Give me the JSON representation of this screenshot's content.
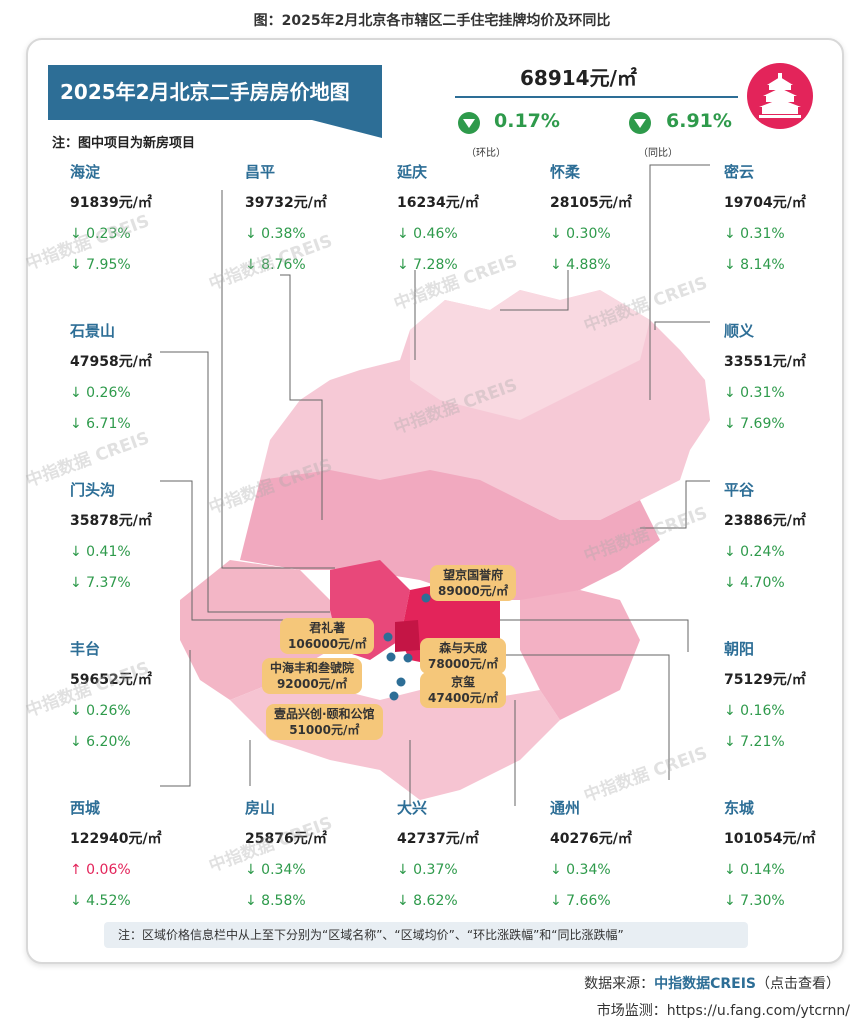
{
  "caption": "图：2025年2月北京各市辖区二手住宅挂牌均价及环同比",
  "banner_title": "2025年2月北京二手房房价地图",
  "note_top": "注：图中项目为新房项目",
  "overall": {
    "avg_price": "68914元/㎡",
    "mom": "0.17%",
    "mom_label": "（环比）",
    "yoy": "6.91%",
    "yoy_label": "（同比）"
  },
  "districts": [
    {
      "name": "海淀",
      "price": "91839元/㎡",
      "mom": "↓ 0.23%",
      "yoy": "↓ 7.95%"
    },
    {
      "name": "昌平",
      "price": "39732元/㎡",
      "mom": "↓ 0.38%",
      "yoy": "↓ 8.76%"
    },
    {
      "name": "延庆",
      "price": "16234元/㎡",
      "mom": "↓ 0.46%",
      "yoy": "↓ 7.28%"
    },
    {
      "name": "怀柔",
      "price": "28105元/㎡",
      "mom": "↓ 0.30%",
      "yoy": "↓ 4.88%"
    },
    {
      "name": "密云",
      "price": "19704元/㎡",
      "mom": "↓ 0.31%",
      "yoy": "↓ 8.14%"
    },
    {
      "name": "石景山",
      "price": "47958元/㎡",
      "mom": "↓ 0.26%",
      "yoy": "↓ 6.71%"
    },
    {
      "name": "顺义",
      "price": "33551元/㎡",
      "mom": "↓ 0.31%",
      "yoy": "↓ 7.69%"
    },
    {
      "name": "门头沟",
      "price": "35878元/㎡",
      "mom": "↓ 0.41%",
      "yoy": "↓ 7.37%"
    },
    {
      "name": "平谷",
      "price": "23886元/㎡",
      "mom": "↓ 0.24%",
      "yoy": "↓ 4.70%"
    },
    {
      "name": "丰台",
      "price": "59652元/㎡",
      "mom": "↓ 0.26%",
      "yoy": "↓ 6.20%"
    },
    {
      "name": "朝阳",
      "price": "75129元/㎡",
      "mom": "↓ 0.16%",
      "yoy": "↓ 7.21%"
    },
    {
      "name": "西城",
      "price": "122940元/㎡",
      "mom": "↑ 0.06%",
      "yoy": "↓ 4.52%"
    },
    {
      "name": "房山",
      "price": "25876元/㎡",
      "mom": "↓ 0.34%",
      "yoy": "↓ 8.58%"
    },
    {
      "name": "大兴",
      "price": "42737元/㎡",
      "mom": "↓ 0.37%",
      "yoy": "↓ 8.62%"
    },
    {
      "name": "通州",
      "price": "40276元/㎡",
      "mom": "↓ 0.34%",
      "yoy": "↓ 7.66%"
    },
    {
      "name": "东城",
      "price": "101054元/㎡",
      "mom": "↓ 0.14%",
      "yoy": "↓ 7.30%"
    }
  ],
  "projects": [
    {
      "name": "望京国誉府",
      "price": "89000元/㎡"
    },
    {
      "name": "君礼著",
      "price": "106000元/㎡"
    },
    {
      "name": "森与天成",
      "price": "78000元/㎡"
    },
    {
      "name": "中海丰和叁號院",
      "price": "92000元/㎡"
    },
    {
      "name": "京玺",
      "price": "47400元/㎡"
    },
    {
      "name": "壹品兴创·颐和公馆",
      "price": "51000元/㎡"
    }
  ],
  "watermark": "中指数据 CREIS",
  "footer_note": "注：区域价格信息栏中从上至下分别为“区域名称”、“区域均价”、“环比涨跌幅”和“同比涨跌幅”",
  "source_label": "数据来源：",
  "source_name": "中指数据CREIS",
  "source_suffix": "（点击查看）",
  "monitor": "市场监测：https://u.fang.com/ytcrnn/",
  "chart_data": {
    "type": "table",
    "title": "2025年2月北京二手房房价地图",
    "columns": [
      "区域名称",
      "区域均价(元/㎡)",
      "环比涨跌幅(%)",
      "同比涨跌幅(%)"
    ],
    "rows": [
      [
        "海淀",
        91839,
        -0.23,
        -7.95
      ],
      [
        "昌平",
        39732,
        -0.38,
        -8.76
      ],
      [
        "延庆",
        16234,
        -0.46,
        -7.28
      ],
      [
        "怀柔",
        28105,
        -0.3,
        -4.88
      ],
      [
        "密云",
        19704,
        -0.31,
        -8.14
      ],
      [
        "石景山",
        47958,
        -0.26,
        -6.71
      ],
      [
        "顺义",
        33551,
        -0.31,
        -7.69
      ],
      [
        "门头沟",
        35878,
        -0.41,
        -7.37
      ],
      [
        "平谷",
        23886,
        -0.24,
        -4.7
      ],
      [
        "丰台",
        59652,
        -0.26,
        -6.2
      ],
      [
        "朝阳",
        75129,
        -0.16,
        -7.21
      ],
      [
        "西城",
        122940,
        0.06,
        -4.52
      ],
      [
        "房山",
        25876,
        -0.34,
        -8.58
      ],
      [
        "大兴",
        42737,
        -0.37,
        -8.62
      ],
      [
        "通州",
        40276,
        -0.34,
        -7.66
      ],
      [
        "东城",
        101054,
        -0.14,
        -7.3
      ]
    ],
    "overall": {
      "avg_price": 68914,
      "mom": -0.17,
      "yoy": -6.91
    },
    "colors": {
      "accent": "#2d6e96",
      "down": "#2e9a4b",
      "up": "#e3245a",
      "callout": "#f5c77a"
    }
  }
}
